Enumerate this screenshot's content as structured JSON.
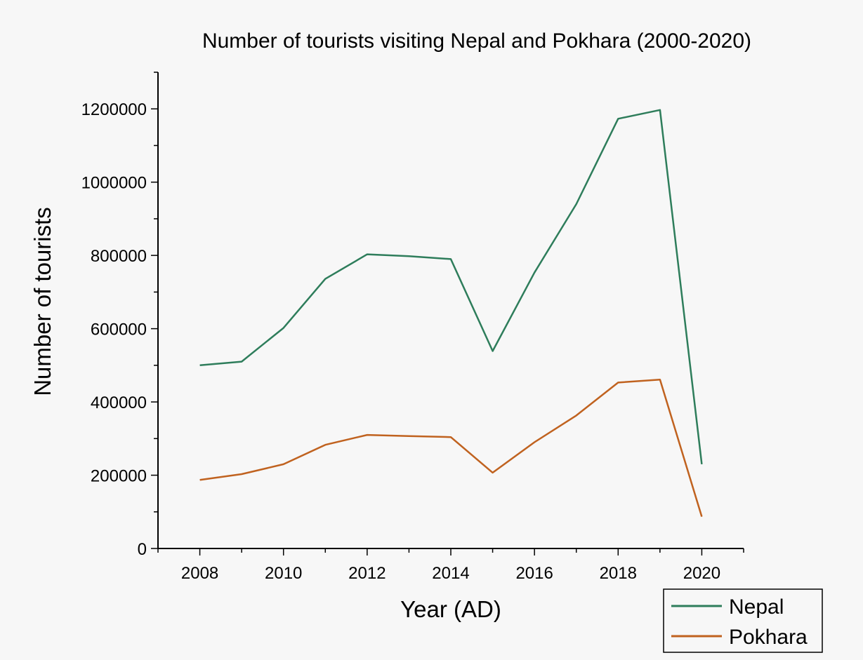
{
  "chart_data": {
    "type": "line",
    "title": "Number of tourists visiting Nepal and Pokhara (2000-2020)",
    "xlabel": "Year (AD)",
    "ylabel": "Number of tourists",
    "xlim": [
      2007,
      2021
    ],
    "ylim": [
      0,
      1300000
    ],
    "x_ticks": [
      2008,
      2010,
      2012,
      2014,
      2016,
      2018,
      2020
    ],
    "y_ticks": [
      0,
      200000,
      400000,
      600000,
      800000,
      1000000,
      1200000
    ],
    "x_tick_labels": [
      "2008",
      "2010",
      "2012",
      "2014",
      "2016",
      "2018",
      "2020"
    ],
    "y_tick_labels": [
      "0",
      "200000",
      "400000",
      "600000",
      "800000",
      "1000000",
      "1200000"
    ],
    "grid": false,
    "legend_position": "bottom-right",
    "x": [
      2008,
      2009,
      2010,
      2011,
      2012,
      2013,
      2014,
      2015,
      2016,
      2017,
      2018,
      2019,
      2020
    ],
    "series": [
      {
        "name": "Nepal",
        "color": "#2e7d5b",
        "values": [
          500000,
          510000,
          602000,
          736000,
          803000,
          798000,
          790000,
          539000,
          753000,
          940000,
          1173000,
          1197000,
          230000
        ]
      },
      {
        "name": "Pokhara",
        "color": "#c0621f",
        "values": [
          187000,
          203000,
          230000,
          283000,
          310000,
          307000,
          304000,
          207000,
          290000,
          363000,
          453000,
          461000,
          87000
        ]
      }
    ]
  }
}
